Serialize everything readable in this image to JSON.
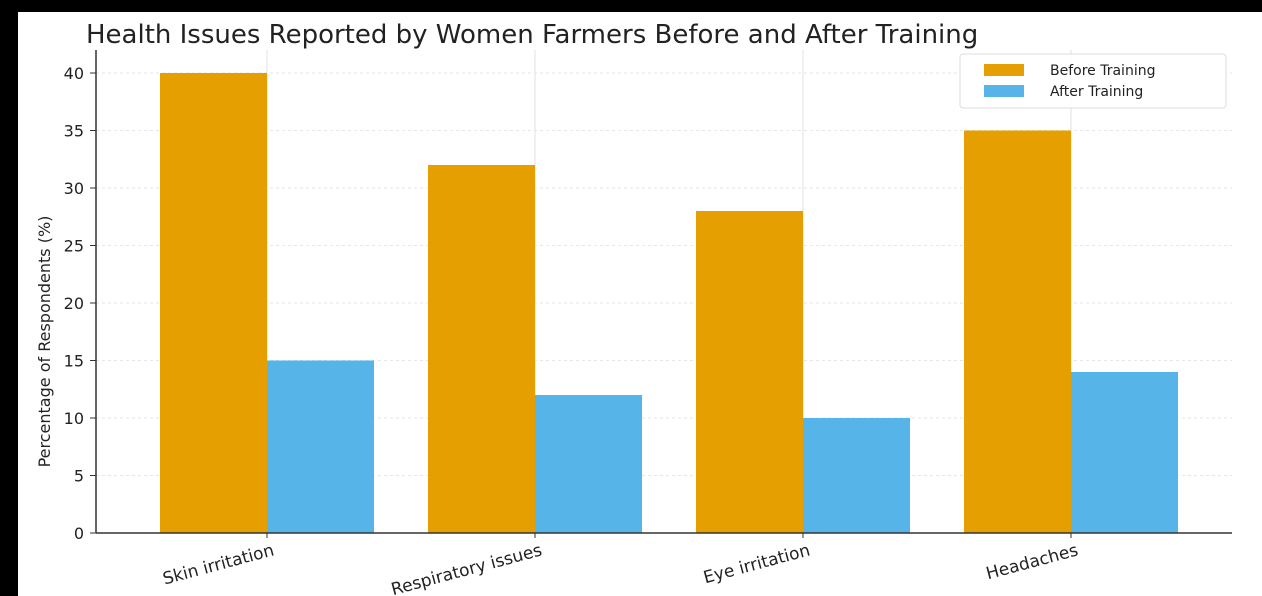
{
  "chart_data": {
    "type": "bar",
    "title": "Health Issues Reported by Women Farmers Before and After Training",
    "xlabel": "",
    "ylabel": "Percentage of Respondents (%)",
    "categories": [
      "Skin irritation",
      "Respiratory issues",
      "Eye irritation",
      "Headaches"
    ],
    "series": [
      {
        "name": "Before Training",
        "values": [
          40,
          32,
          28,
          35
        ],
        "color": "#E69F00"
      },
      {
        "name": "After Training",
        "values": [
          15,
          12,
          10,
          14
        ],
        "color": "#56B4E9"
      }
    ],
    "ylim": [
      0,
      42
    ],
    "yticks": [
      "0",
      "5",
      "10",
      "15",
      "20",
      "25",
      "30",
      "35",
      "40"
    ],
    "grid": true,
    "legend_position": "top-right"
  }
}
